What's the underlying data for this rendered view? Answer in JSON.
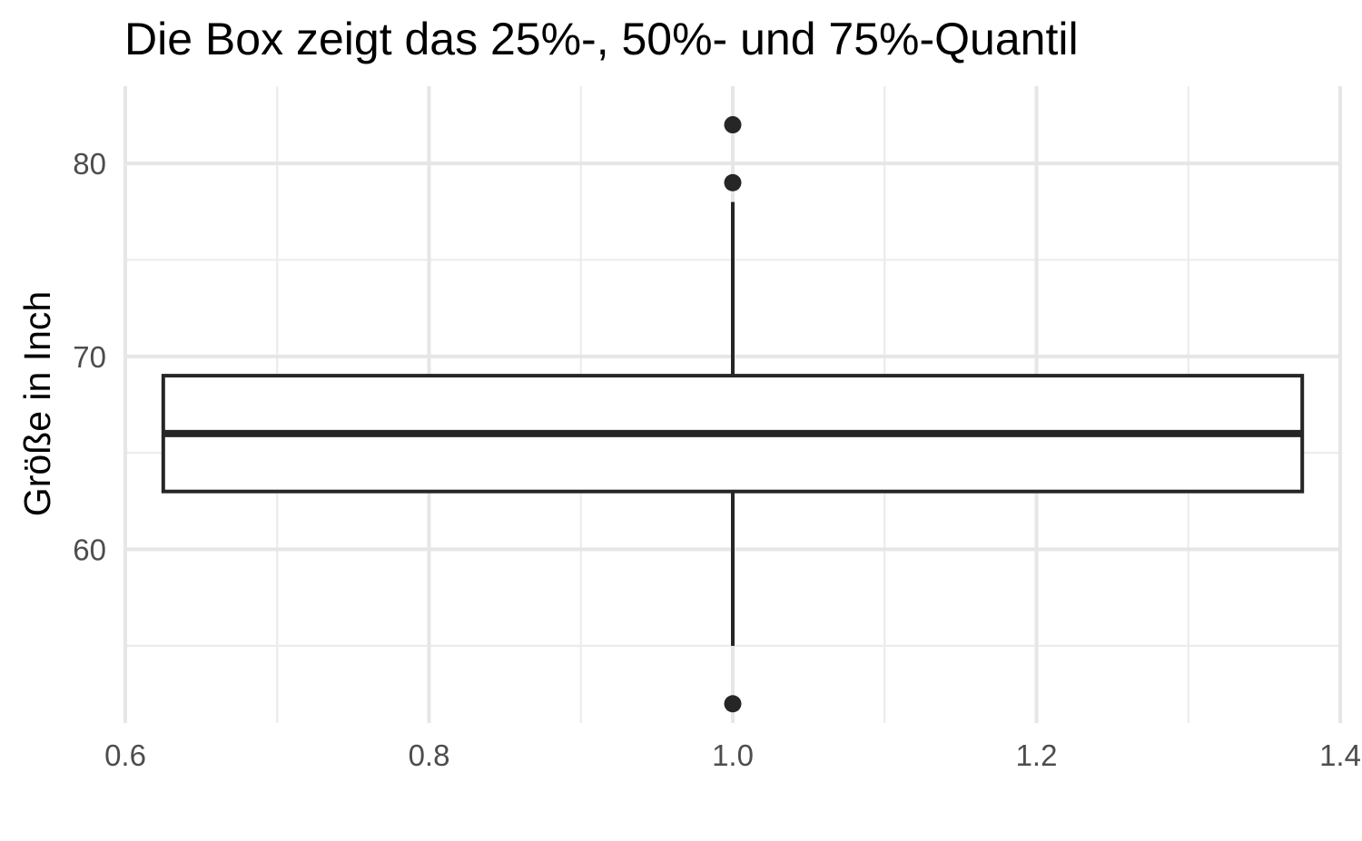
{
  "chart_data": {
    "type": "boxplot",
    "title": "Die Box zeigt das 25%-, 50%- und 75%-Quantil",
    "xlabel": "",
    "ylabel": "Größe in Inch",
    "xlim": [
      0.6,
      1.4
    ],
    "ylim": [
      51,
      84
    ],
    "x_ticks": [
      0.6,
      0.8,
      1.0,
      1.2,
      1.4
    ],
    "x_tick_labels": [
      "0.6",
      "0.8",
      "1.0",
      "1.2",
      "1.4"
    ],
    "x_minor_ticks": [
      0.7,
      0.9,
      1.1,
      1.3
    ],
    "y_ticks": [
      60,
      70,
      80
    ],
    "y_tick_labels": [
      "60",
      "70",
      "80"
    ],
    "y_minor_ticks": [
      55,
      65,
      75
    ],
    "grid": true,
    "colors": {
      "box_line": "#262626",
      "box_fill": "#ffffff",
      "grid": "#e6e6e6"
    },
    "box": {
      "x_center": 1.0,
      "x_left": 0.625,
      "x_right": 1.375,
      "q1": 63,
      "median": 66,
      "q3": 69,
      "whisker_low": 55,
      "whisker_high": 78
    },
    "outliers": [
      {
        "x": 1.0,
        "y": 82
      },
      {
        "x": 1.0,
        "y": 79
      },
      {
        "x": 1.0,
        "y": 52
      }
    ]
  }
}
